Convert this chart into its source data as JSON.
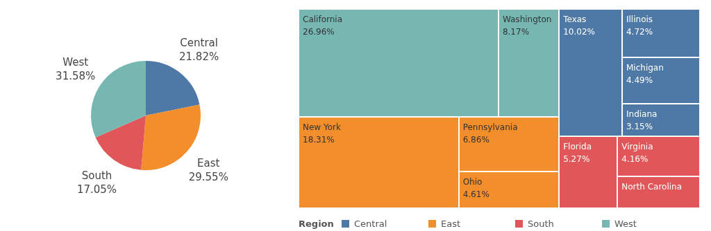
{
  "chart_data": [
    {
      "type": "pie",
      "categories": [
        "Central",
        "East",
        "South",
        "West"
      ],
      "values": [
        21.82,
        29.55,
        17.05,
        31.58
      ],
      "colors": [
        "#4e79a7",
        "#f28e2b",
        "#e15759",
        "#76b7b2"
      ],
      "value_labels": [
        "21.82%",
        "29.55%",
        "17.05%",
        "31.58%"
      ]
    },
    {
      "type": "other",
      "legend": "bottom",
      "legend_title": "Region",
      "categories": [
        "California",
        "Washington",
        "New York",
        "Pennsylvania",
        "Ohio",
        "Texas",
        "Illinois",
        "Michigan",
        "Indiana",
        "Florida",
        "Virginia",
        "North Carolina"
      ],
      "series": [
        {
          "name": "Central",
          "color": "#4e79a7",
          "values": [
            null,
            null,
            null,
            null,
            null,
            10.02,
            4.72,
            4.49,
            3.15,
            null,
            null,
            null
          ],
          "value_labels": [
            null,
            null,
            null,
            null,
            null,
            "10.02%",
            "4.72%",
            "4.49%",
            "3.15%",
            null,
            null,
            null
          ]
        },
        {
          "name": "East",
          "color": "#f28e2b",
          "values": [
            null,
            null,
            18.31,
            6.86,
            4.61,
            null,
            null,
            null,
            null,
            null,
            null,
            null
          ],
          "value_labels": [
            null,
            null,
            "18.31%",
            "6.86%",
            "4.61%",
            null,
            null,
            null,
            null,
            null,
            null,
            null
          ]
        },
        {
          "name": "South",
          "color": "#e15759",
          "values": [
            null,
            null,
            null,
            null,
            null,
            null,
            null,
            null,
            null,
            5.27,
            4.16,
            null
          ],
          "value_labels": [
            null,
            null,
            null,
            null,
            null,
            null,
            null,
            null,
            null,
            "5.27%",
            "4.16%",
            null
          ]
        },
        {
          "name": "West",
          "color": "#76b7b2",
          "values": [
            26.96,
            8.17,
            null,
            null,
            null,
            null,
            null,
            null,
            null,
            null,
            null,
            null
          ],
          "value_labels": [
            "26.96%",
            "8.17%",
            null,
            null,
            null,
            null,
            null,
            null,
            null,
            null,
            null,
            null
          ]
        }
      ]
    }
  ]
}
